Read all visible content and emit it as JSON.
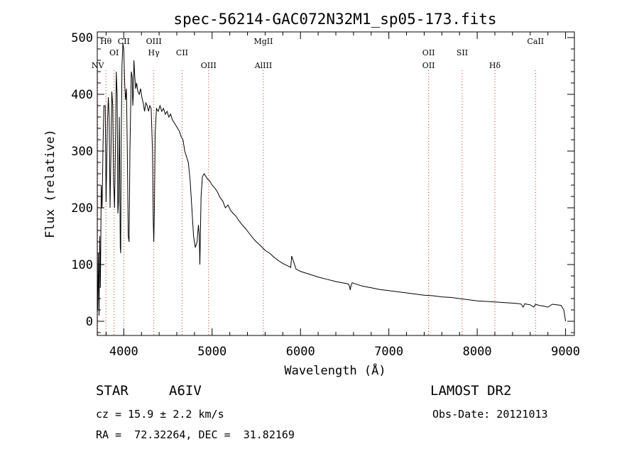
{
  "chart_data": {
    "type": "line",
    "title": "spec-56214-GAC072N32M1_sp05-173.fits",
    "xlabel": "Wavelength (Å)",
    "ylabel": "Flux (relative)",
    "xlim": [
      3700,
      9100
    ],
    "ylim": [
      -25,
      510
    ],
    "xticks": [
      4000,
      5000,
      6000,
      7000,
      8000,
      9000
    ],
    "xtick_labels": [
      "4000",
      "5000",
      "6000",
      "7000",
      "8000",
      "9000"
    ],
    "yticks": [
      0,
      100,
      200,
      300,
      400,
      500
    ],
    "ytick_labels": [
      "0",
      "100",
      "200",
      "300",
      "400",
      "500"
    ],
    "grid": false,
    "line_color": "#000000",
    "marker_color": "#cc3333",
    "series": [
      {
        "x": [
          3705,
          3712,
          3720,
          3728,
          3735,
          3745,
          3755,
          3765,
          3775,
          3790,
          3800,
          3815,
          3825,
          3835,
          3845,
          3855,
          3865,
          3875,
          3885,
          3889,
          3895,
          3905,
          3915,
          3925,
          3933,
          3940,
          3950,
          3960,
          3965,
          3970,
          3980,
          3990,
          4000,
          4010,
          4020,
          4030,
          4040,
          4050,
          4060,
          4070,
          4085,
          4095,
          4102,
          4108,
          4115,
          4125,
          4135,
          4145,
          4160,
          4175,
          4190,
          4205,
          4220,
          4235,
          4250,
          4265,
          4280,
          4295,
          4310,
          4325,
          4333,
          4340,
          4347,
          4355,
          4370,
          4390,
          4410,
          4430,
          4450,
          4470,
          4490,
          4510,
          4530,
          4550,
          4570,
          4590,
          4610,
          4630,
          4650,
          4670,
          4690,
          4710,
          4730,
          4750,
          4770,
          4790,
          4810,
          4830,
          4845,
          4855,
          4861,
          4867,
          4875,
          4890,
          4910,
          4930,
          4950,
          4970,
          5000,
          5030,
          5060,
          5090,
          5120,
          5150,
          5180,
          5210,
          5240,
          5270,
          5300,
          5340,
          5380,
          5420,
          5460,
          5500,
          5550,
          5600,
          5650,
          5700,
          5750,
          5800,
          5850,
          5890,
          5900,
          5950,
          6000,
          6100,
          6200,
          6300,
          6400,
          6500,
          6540,
          6555,
          6563,
          6570,
          6585,
          6620,
          6700,
          6800,
          6900,
          7000,
          7100,
          7200,
          7300,
          7400,
          7500,
          7600,
          7700,
          7800,
          7900,
          8000,
          8100,
          8200,
          8300,
          8400,
          8480,
          8500,
          8520,
          8540,
          8560,
          8600,
          8640,
          8660,
          8700,
          8740,
          8800,
          8850,
          8900,
          8950,
          8980,
          9000
        ],
        "y": [
          20,
          120,
          10,
          150,
          60,
          240,
          200,
          310,
          380,
          380,
          210,
          350,
          395,
          360,
          200,
          300,
          405,
          380,
          240,
          230,
          200,
          300,
          440,
          400,
          190,
          210,
          360,
          130,
          120,
          300,
          450,
          490,
          480,
          420,
          390,
          410,
          300,
          150,
          140,
          300,
          440,
          430,
          380,
          400,
          460,
          430,
          410,
          420,
          405,
          400,
          410,
          395,
          385,
          370,
          385,
          380,
          370,
          380,
          375,
          300,
          180,
          140,
          200,
          330,
          375,
          370,
          380,
          370,
          375,
          365,
          370,
          360,
          365,
          355,
          350,
          345,
          340,
          335,
          325,
          320,
          300,
          290,
          280,
          250,
          200,
          150,
          130,
          140,
          170,
          150,
          100,
          150,
          220,
          255,
          260,
          255,
          250,
          248,
          240,
          235,
          228,
          218,
          212,
          200,
          205,
          195,
          190,
          185,
          178,
          170,
          163,
          155,
          147,
          140,
          133,
          125,
          120,
          113,
          107,
          102,
          98,
          95,
          115,
          92,
          88,
          83,
          78,
          74,
          70,
          67,
          66,
          62,
          55,
          62,
          68,
          66,
          62,
          59,
          56,
          54,
          52,
          50,
          48,
          46,
          45,
          43,
          42,
          40,
          38,
          36,
          35,
          34,
          33,
          32,
          31,
          30,
          25,
          31,
          30,
          29,
          25,
          30,
          28,
          27,
          25,
          30,
          29,
          28,
          20,
          0
        ]
      }
    ],
    "line_markers": [
      {
        "x": 3705,
        "row": 3,
        "label": "NV"
      },
      {
        "x": 3798,
        "row": 1,
        "label": "Hθ"
      },
      {
        "x": 3890,
        "row": 2,
        "label": "OI"
      },
      {
        "x": 4000,
        "row": 1,
        "label": "CII"
      },
      {
        "x": 4340,
        "row": 1,
        "label": "OIII"
      },
      {
        "x": 4340,
        "row": 2,
        "label": "Hγ"
      },
      {
        "x": 4660,
        "row": 2,
        "label": "CII"
      },
      {
        "x": 4960,
        "row": 3,
        "label": "OIII"
      },
      {
        "x": 5580,
        "row": 1,
        "label": "MgII"
      },
      {
        "x": 5580,
        "row": 3,
        "label": "AlIII"
      },
      {
        "x": 7450,
        "row": 2,
        "label": "OII"
      },
      {
        "x": 7450,
        "row": 3,
        "label": "OII"
      },
      {
        "x": 7830,
        "row": 2,
        "label": "SII"
      },
      {
        "x": 8200,
        "row": 3,
        "label": "Hδ"
      },
      {
        "x": 8660,
        "row": 1,
        "label": "CaII"
      }
    ]
  },
  "info": {
    "object_type": "STAR",
    "subclass": "A6IV",
    "survey": "LAMOST DR2",
    "cz": "cz = 15.9 ± 2.2 km/s",
    "obs_date": "Obs-Date: 20121013",
    "coords": "RA =  72.32264, DEC =  31.82169"
  }
}
